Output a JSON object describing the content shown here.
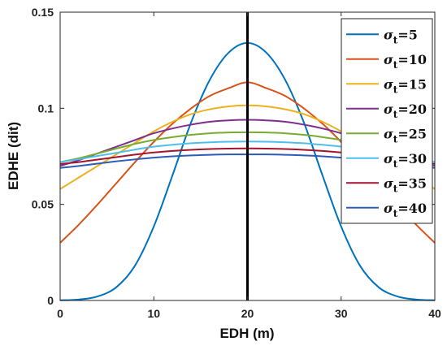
{
  "chart_data": {
    "type": "line",
    "xlabel": "EDH (m)",
    "ylabel": "EDHE (dit)",
    "xlim": [
      0,
      40
    ],
    "ylim": [
      0,
      0.15
    ],
    "xticks": [
      {
        "value": 0,
        "label": "0"
      },
      {
        "value": 10,
        "label": "10"
      },
      {
        "value": 20,
        "label": "20"
      },
      {
        "value": 30,
        "label": "30"
      },
      {
        "value": 40,
        "label": "40"
      }
    ],
    "yticks": [
      {
        "value": 0,
        "label": "0"
      },
      {
        "value": 0.05,
        "label": "0.05"
      },
      {
        "value": 0.1,
        "label": "0.1"
      },
      {
        "value": 0.15,
        "label": "0.15"
      }
    ],
    "x": [
      0,
      2,
      4,
      6,
      8,
      10,
      12,
      14,
      16,
      18,
      20,
      22,
      24,
      26,
      28,
      30,
      32,
      34,
      36,
      38,
      40
    ],
    "series": [
      {
        "name": "σt=5",
        "color": "#0072BD",
        "values": [
          0.0001,
          0.0005,
          0.0021,
          0.0069,
          0.0182,
          0.0385,
          0.0652,
          0.0929,
          0.115,
          0.129,
          0.134,
          0.129,
          0.115,
          0.0929,
          0.0652,
          0.0385,
          0.0182,
          0.0069,
          0.0021,
          0.0005,
          0.0001
        ]
      },
      {
        "name": "σt=10",
        "color": "#D95319",
        "values": [
          0.03,
          0.0395,
          0.05,
          0.061,
          0.072,
          0.0825,
          0.092,
          0.1,
          0.1065,
          0.1105,
          0.1135,
          0.1105,
          0.1065,
          0.1,
          0.092,
          0.0825,
          0.072,
          0.061,
          0.05,
          0.0395,
          0.03
        ]
      },
      {
        "name": "σt=15",
        "color": "#EDB120",
        "values": [
          0.058,
          0.064,
          0.07,
          0.076,
          0.082,
          0.088,
          0.093,
          0.097,
          0.0995,
          0.101,
          0.1015,
          0.101,
          0.0995,
          0.097,
          0.093,
          0.088,
          0.082,
          0.076,
          0.07,
          0.064,
          0.058
        ]
      },
      {
        "name": "σt=20",
        "color": "#7E2F8E",
        "values": [
          0.07,
          0.073,
          0.0765,
          0.08,
          0.0835,
          0.087,
          0.0895,
          0.0915,
          0.093,
          0.0937,
          0.094,
          0.0937,
          0.093,
          0.0915,
          0.0895,
          0.087,
          0.0835,
          0.08,
          0.0765,
          0.073,
          0.07
        ]
      },
      {
        "name": "σt=25",
        "color": "#77AC30",
        "values": [
          0.072,
          0.074,
          0.0765,
          0.079,
          0.0815,
          0.0835,
          0.085,
          0.0862,
          0.087,
          0.0874,
          0.0875,
          0.0874,
          0.087,
          0.0862,
          0.085,
          0.0835,
          0.0815,
          0.079,
          0.0765,
          0.074,
          0.072
        ]
      },
      {
        "name": "σt=30",
        "color": "#4DBEEE",
        "values": [
          0.072,
          0.0735,
          0.0752,
          0.0768,
          0.0785,
          0.08,
          0.081,
          0.0818,
          0.0823,
          0.0826,
          0.0827,
          0.0826,
          0.0823,
          0.0818,
          0.081,
          0.08,
          0.0785,
          0.0768,
          0.0752,
          0.0735,
          0.072
        ]
      },
      {
        "name": "σt=35",
        "color": "#A2142F",
        "values": [
          0.071,
          0.072,
          0.0733,
          0.0746,
          0.0759,
          0.077,
          0.0778,
          0.0784,
          0.0788,
          0.079,
          0.0791,
          0.079,
          0.0788,
          0.0784,
          0.0778,
          0.077,
          0.0759,
          0.0746,
          0.0733,
          0.072,
          0.071
        ]
      },
      {
        "name": "σt=40",
        "color": "#2D5BB8",
        "values": [
          0.069,
          0.07,
          0.0712,
          0.0724,
          0.0734,
          0.0743,
          0.075,
          0.0755,
          0.0758,
          0.076,
          0.076,
          0.076,
          0.0758,
          0.0755,
          0.075,
          0.0743,
          0.0734,
          0.0724,
          0.0712,
          0.07,
          0.069
        ]
      }
    ],
    "vertical_line": {
      "x": 20,
      "color": "#000000"
    },
    "legend": {
      "placement": "top-right"
    },
    "grid": false
  }
}
